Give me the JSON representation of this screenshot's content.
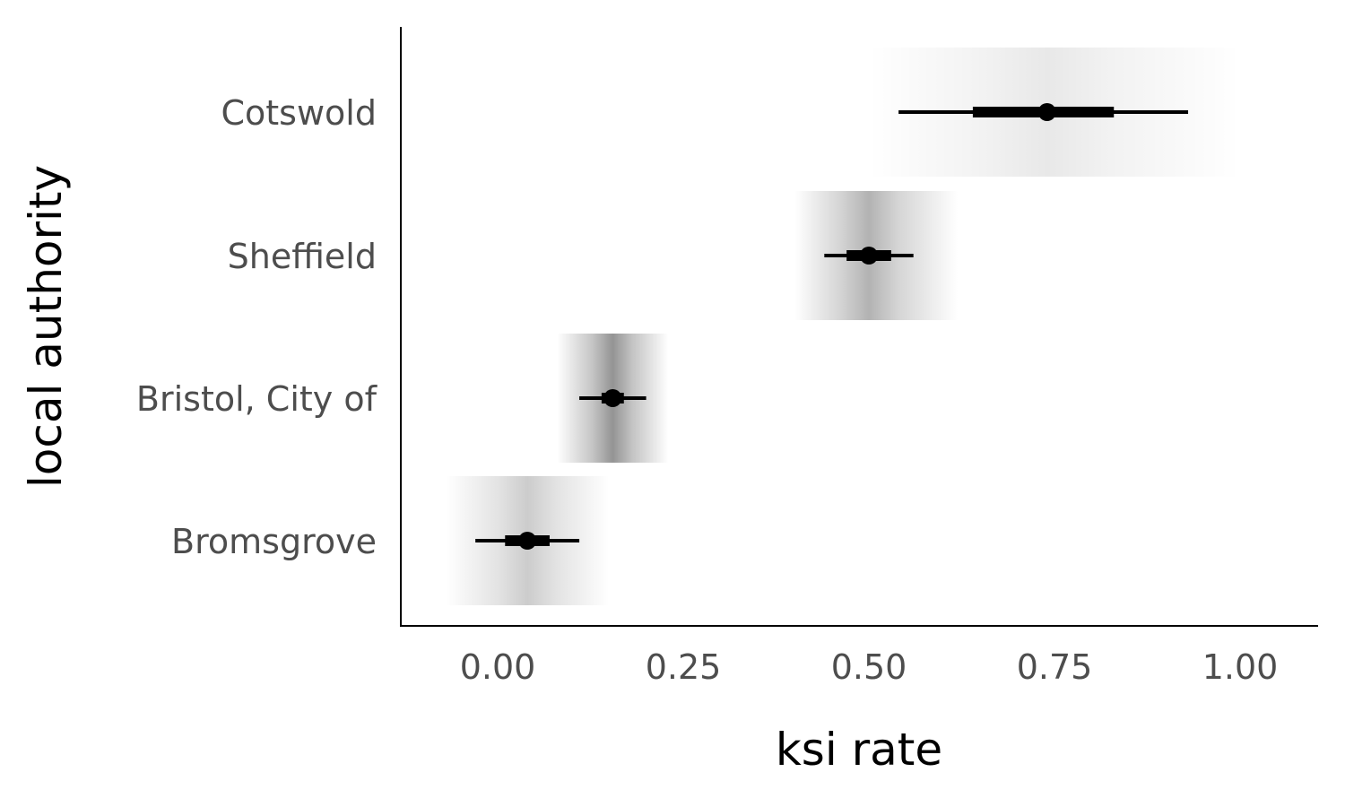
{
  "chart_data": {
    "type": "interval",
    "xlabel": "ksi rate",
    "ylabel": "local authority",
    "xlim": [
      -0.13,
      1.11
    ],
    "x_ticks": [
      {
        "value": 0.0,
        "label": "0.00"
      },
      {
        "value": 0.25,
        "label": "0.25"
      },
      {
        "value": 0.5,
        "label": "0.50"
      },
      {
        "value": 0.75,
        "label": "0.75"
      },
      {
        "value": 1.0,
        "label": "1.00"
      }
    ],
    "categories": [
      "Cotswold",
      "Sheffield",
      "Bristol, City of",
      "Bromsgrove"
    ],
    "series": [
      {
        "category": "Cotswold",
        "estimate": 0.74,
        "inner": [
          0.64,
          0.83
        ],
        "outer": [
          0.54,
          0.93
        ],
        "density": [
          0.5,
          1.0
        ],
        "density_peak": 0.09
      },
      {
        "category": "Sheffield",
        "estimate": 0.5,
        "inner": [
          0.47,
          0.53
        ],
        "outer": [
          0.44,
          0.56
        ],
        "density": [
          0.4,
          0.62
        ],
        "density_peak": 0.3
      },
      {
        "category": "Bristol, City of",
        "estimate": 0.155,
        "inner": [
          0.14,
          0.17
        ],
        "outer": [
          0.11,
          0.2
        ],
        "density": [
          0.08,
          0.23
        ],
        "density_peak": 0.42
      },
      {
        "category": "Bromsgrove",
        "estimate": 0.04,
        "inner": [
          0.01,
          0.07
        ],
        "outer": [
          -0.03,
          0.11
        ],
        "density": [
          -0.07,
          0.15
        ],
        "density_peak": 0.2
      }
    ],
    "grid": false,
    "legend": "none"
  }
}
